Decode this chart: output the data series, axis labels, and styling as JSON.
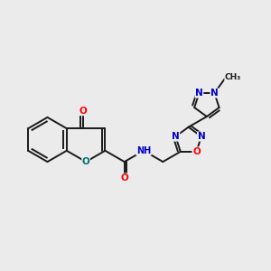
{
  "bg_color": "#ebebeb",
  "bond_color": "#1a1a1a",
  "bond_lw": 1.4,
  "atom_colors": {
    "O": "#ff0000",
    "N": "#0000cc",
    "H": "#666666",
    "C": "#1a1a1a"
  },
  "font_size": 7.5,
  "xlim": [
    0.0,
    10.0
  ],
  "ylim": [
    3.2,
    8.2
  ]
}
